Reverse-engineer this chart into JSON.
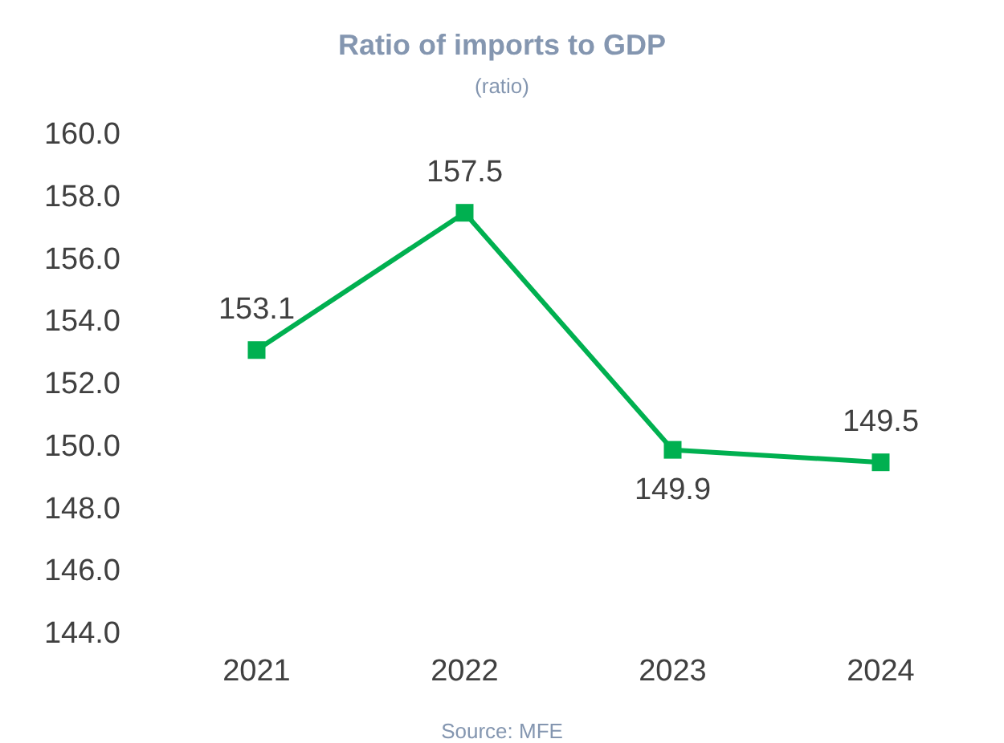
{
  "chart_data": {
    "type": "line",
    "title": "Ratio of imports to GDP",
    "subtitle": "(ratio)",
    "annotations": [
      "Source: MFE"
    ],
    "categories": [
      "2021",
      "2022",
      "2023",
      "2024"
    ],
    "series": [
      {
        "color": "#00b050",
        "values": [
          153.1,
          157.5,
          149.9,
          149.5
        ]
      }
    ],
    "ylim": [
      144,
      160
    ],
    "yticks": [
      {
        "value": 144,
        "label": "144.0"
      },
      {
        "value": 146,
        "label": "146.0"
      },
      {
        "value": 148,
        "label": "148.0"
      },
      {
        "value": 150,
        "label": "150.0"
      },
      {
        "value": 152,
        "label": "152.0"
      },
      {
        "value": 154,
        "label": "154.0"
      },
      {
        "value": 156,
        "label": "156.0"
      },
      {
        "value": 158,
        "label": "158.0"
      },
      {
        "value": 160,
        "label": "160.0"
      }
    ],
    "grid": false,
    "marker": "square",
    "line_style": "solid",
    "data_labels": true
  }
}
